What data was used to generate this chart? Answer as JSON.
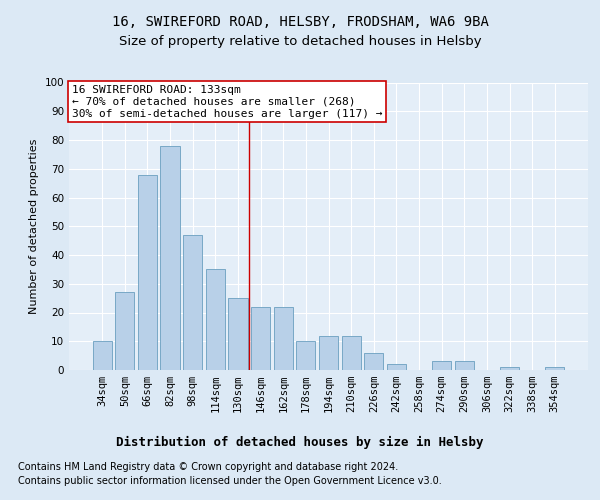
{
  "title1": "16, SWIREFORD ROAD, HELSBY, FRODSHAM, WA6 9BA",
  "title2": "Size of property relative to detached houses in Helsby",
  "xlabel": "Distribution of detached houses by size in Helsby",
  "ylabel": "Number of detached properties",
  "categories": [
    "34sqm",
    "50sqm",
    "66sqm",
    "82sqm",
    "98sqm",
    "114sqm",
    "130sqm",
    "146sqm",
    "162sqm",
    "178sqm",
    "194sqm",
    "210sqm",
    "226sqm",
    "242sqm",
    "258sqm",
    "274sqm",
    "290sqm",
    "306sqm",
    "322sqm",
    "338sqm",
    "354sqm"
  ],
  "values": [
    10,
    27,
    68,
    78,
    47,
    35,
    25,
    22,
    22,
    10,
    12,
    12,
    6,
    2,
    0,
    3,
    3,
    0,
    1,
    0,
    1
  ],
  "bar_color": "#b8d0e8",
  "bar_edge_color": "#6a9fc0",
  "bg_color": "#dce9f5",
  "plot_bg_color": "#e4eef8",
  "grid_color": "#ffffff",
  "vline_color": "#cc0000",
  "vline_pos": 6.5,
  "annotation_lines": [
    "16 SWIREFORD ROAD: 133sqm",
    "← 70% of detached houses are smaller (268)",
    "30% of semi-detached houses are larger (117) →"
  ],
  "annotation_box_color": "#ffffff",
  "annotation_box_edge": "#cc0000",
  "footnote1": "Contains HM Land Registry data © Crown copyright and database right 2024.",
  "footnote2": "Contains public sector information licensed under the Open Government Licence v3.0.",
  "ylim": [
    0,
    100
  ],
  "title1_fontsize": 10,
  "title2_fontsize": 9.5,
  "xlabel_fontsize": 9,
  "ylabel_fontsize": 8,
  "tick_fontsize": 7.5,
  "annot_fontsize": 8,
  "footnote_fontsize": 7
}
